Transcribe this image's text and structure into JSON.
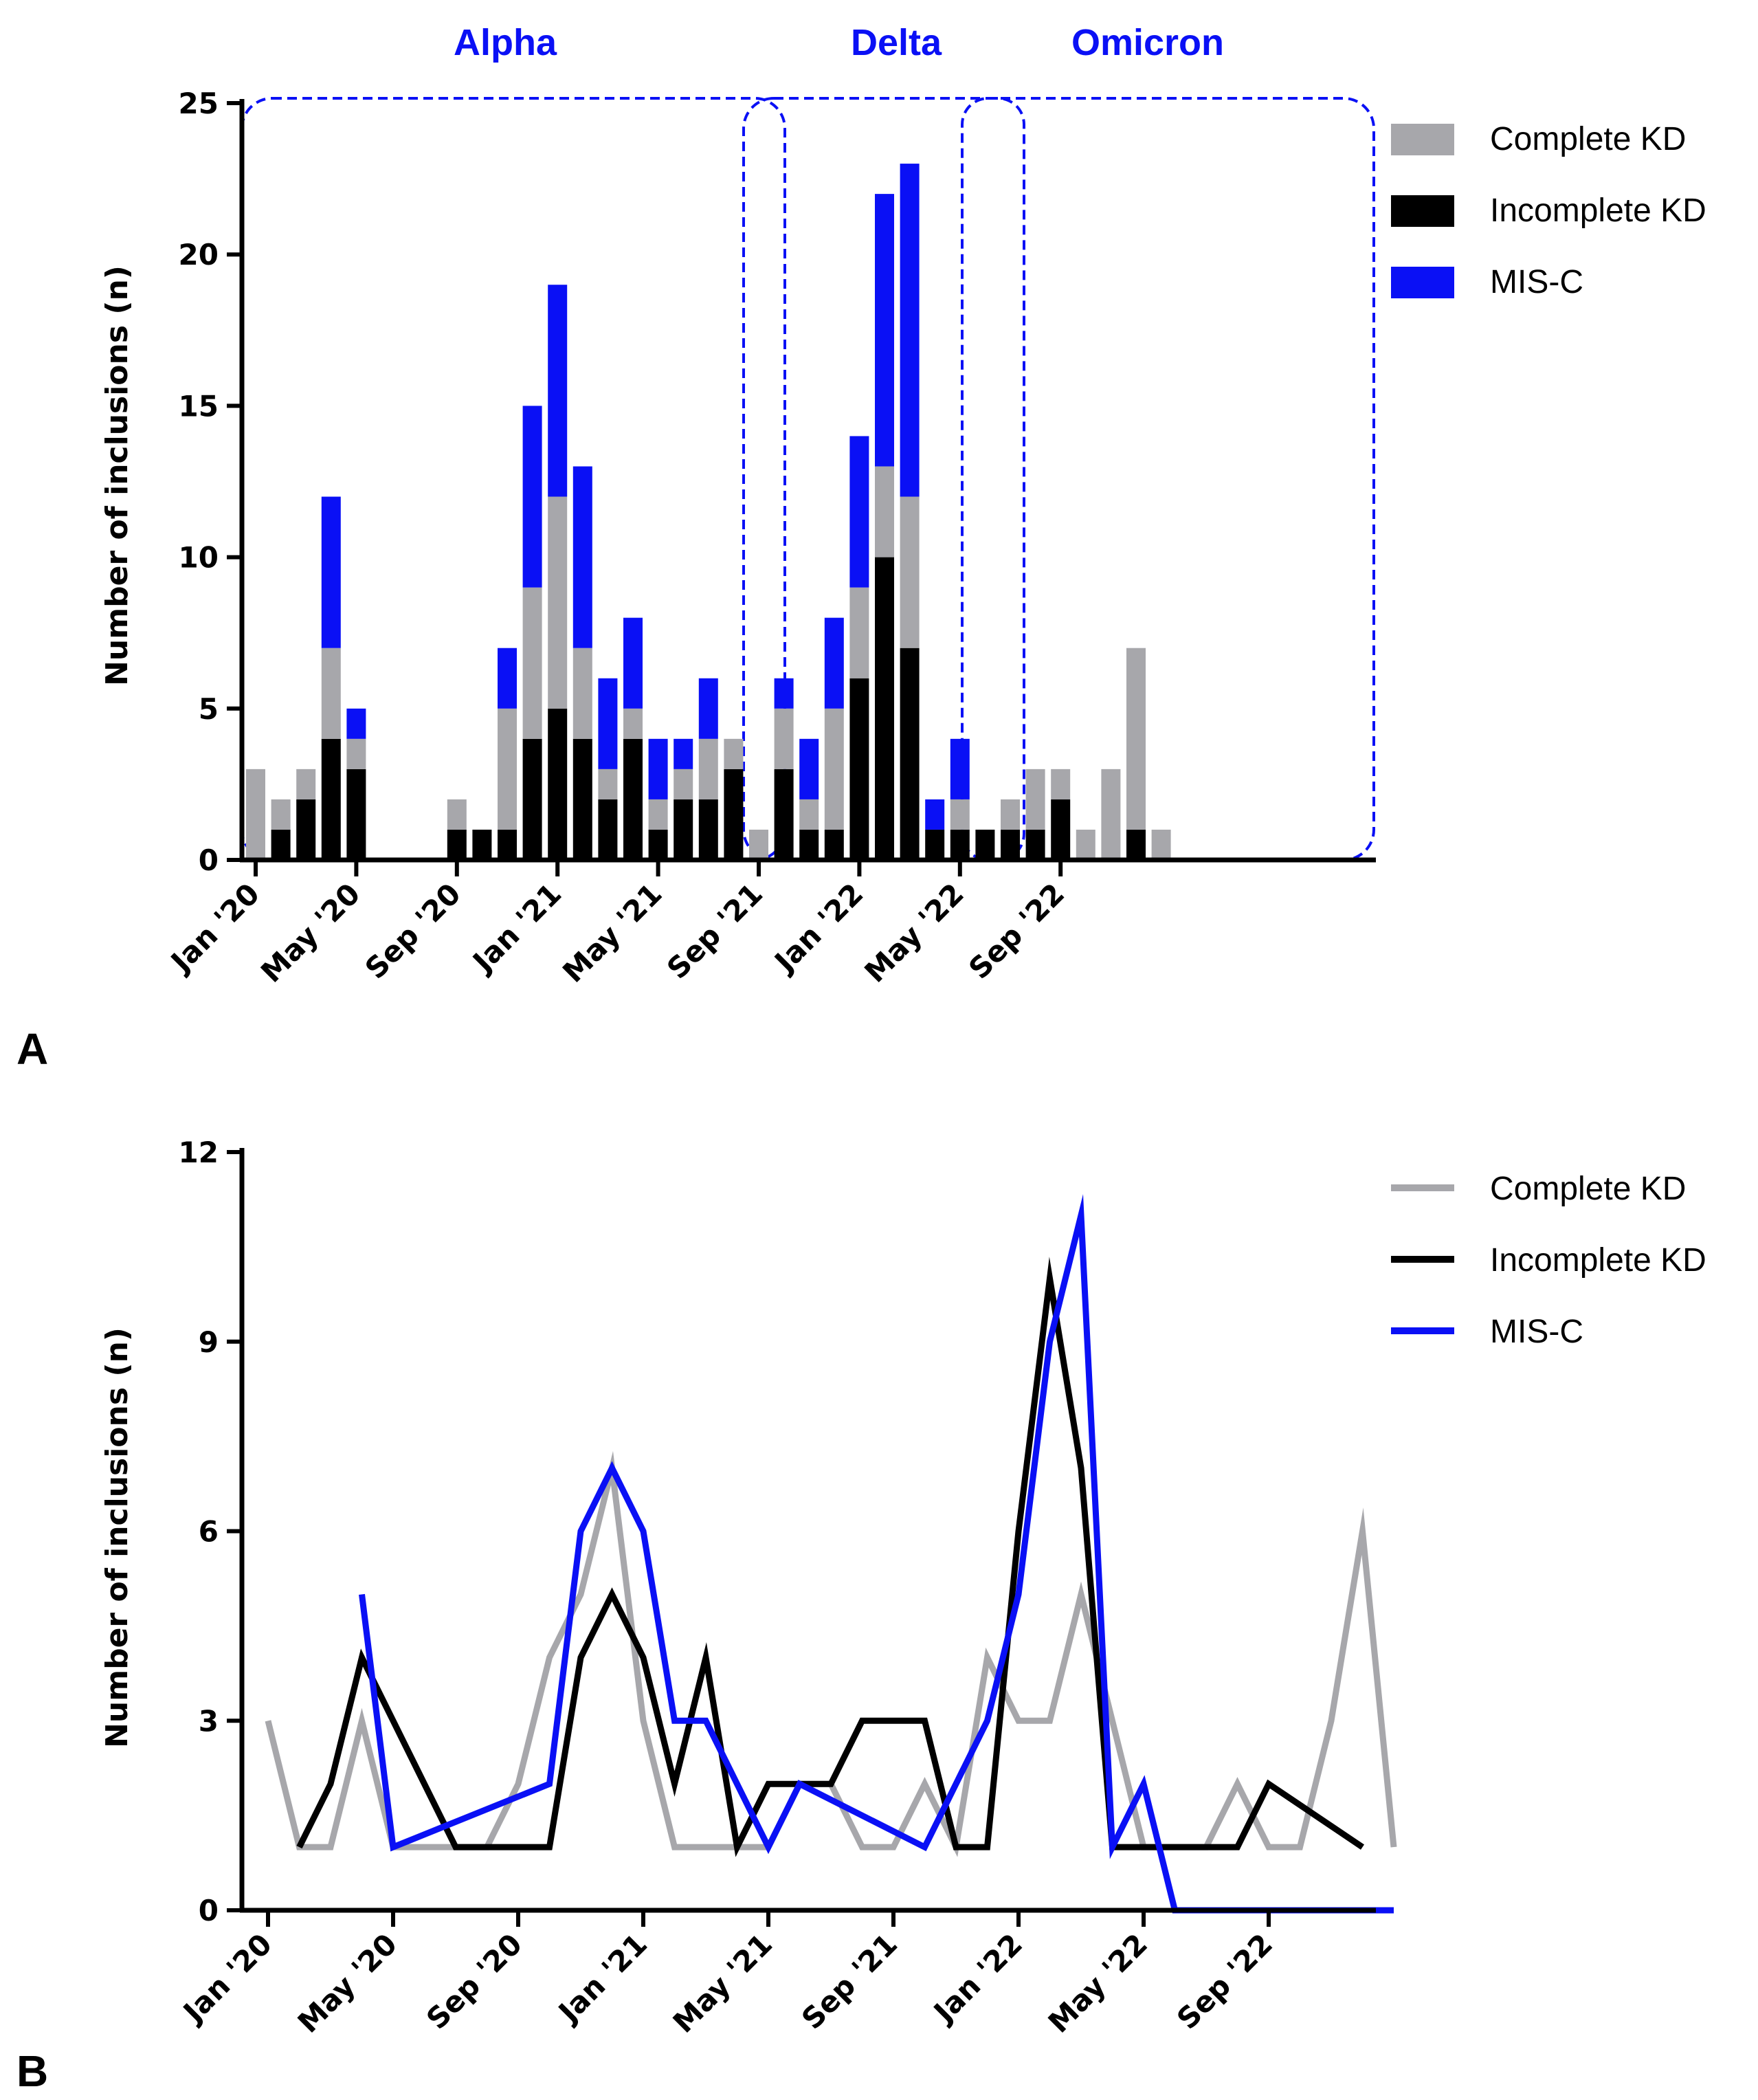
{
  "colors": {
    "complete": "#a7a7ab",
    "incomplete": "#000000",
    "misc": "#0a10f5"
  },
  "panels": {
    "a": "A",
    "b": "B"
  },
  "chart_data": [
    {
      "type": "bar",
      "stacked": true,
      "ylabel": "Number of inclusions (n)",
      "ylim": [
        0,
        25
      ],
      "yticks": [
        "0",
        "5",
        "10",
        "15",
        "20",
        "25"
      ],
      "xtick_labels": [
        "Jan '20",
        "May '20",
        "Sep '20",
        "Jan '21",
        "May '21",
        "Sep '21",
        "Jan '22",
        "May '22",
        "Sep '22"
      ],
      "categories": [
        "Jan 2020",
        "Feb 2020",
        "Mar 2020",
        "Apr 2020",
        "May 2020",
        "Jun 2020",
        "Jul 2020",
        "Aug 2020",
        "Sep 2020",
        "Oct 2020",
        "Nov 2020",
        "Dec 2020",
        "Jan 2021",
        "Feb 2021",
        "Mar 2021",
        "Apr 2021",
        "May 2021",
        "Jun 2021",
        "Jul 2021",
        "Aug 2021",
        "Sep 2021",
        "Oct 2021",
        "Nov 2021",
        "Dec 2021",
        "Jan 2022",
        "Feb 2022",
        "Mar 2022",
        "Apr 2022",
        "May 2022",
        "Jun 2022",
        "Jul 2022",
        "Aug 2022",
        "Sep 2022",
        "Oct 2022",
        "Nov 2022",
        "Dec 2022"
      ],
      "series": [
        {
          "name": "Incomplete KD",
          "values": [
            0,
            1,
            2,
            4,
            3,
            0,
            0,
            0,
            1,
            1,
            1,
            4,
            5,
            4,
            2,
            4,
            1,
            2,
            2,
            3,
            0,
            3,
            1,
            1,
            6,
            10,
            7,
            1,
            1,
            1,
            1,
            1,
            2,
            0,
            0,
            1
          ]
        },
        {
          "name": "Complete KD",
          "values": [
            3,
            1,
            1,
            3,
            1,
            0,
            0,
            0,
            1,
            0,
            4,
            5,
            7,
            3,
            1,
            1,
            1,
            1,
            2,
            1,
            1,
            2,
            1,
            4,
            3,
            3,
            5,
            0,
            1,
            0,
            1,
            2,
            1,
            1,
            3,
            6
          ]
        },
        {
          "name": "MIS-C",
          "values": [
            0,
            0,
            0,
            5,
            1,
            0,
            0,
            0,
            0,
            0,
            2,
            6,
            7,
            6,
            3,
            3,
            2,
            1,
            2,
            0,
            0,
            1,
            2,
            3,
            5,
            9,
            11,
            1,
            2,
            0,
            0,
            0,
            0,
            0,
            0,
            0
          ]
        }
      ],
      "extra_bar": {
        "category": "Jan 2023",
        "name": "Complete KD",
        "value": 1
      },
      "legend": [
        "Complete KD",
        "Incomplete KD",
        "MIS-C"
      ],
      "annotations": [
        "Alpha",
        "Delta",
        "Omicron"
      ]
    },
    {
      "type": "line",
      "ylabel": "Number of inclusions (n)",
      "ylim": [
        0,
        12
      ],
      "yticks": [
        "0",
        "3",
        "6",
        "9",
        "12"
      ],
      "xtick_labels": [
        "Jan '20",
        "May '20",
        "Sep '20",
        "Jan '21",
        "May '21",
        "Sep '21",
        "Jan '22",
        "May '22",
        "Sep '22"
      ],
      "series": [
        {
          "name": "Complete KD",
          "points": [
            [
              0,
              3
            ],
            [
              1,
              1
            ],
            [
              2,
              1
            ],
            [
              3,
              3
            ],
            [
              4,
              1
            ],
            [
              5,
              1
            ],
            [
              6,
              1
            ],
            [
              7,
              1
            ],
            [
              8,
              2
            ],
            [
              9,
              4
            ],
            [
              10,
              5
            ],
            [
              11,
              7
            ],
            [
              12,
              3
            ],
            [
              13,
              1
            ],
            [
              14,
              1
            ],
            [
              15,
              1
            ],
            [
              16,
              1
            ],
            [
              17,
              2
            ],
            [
              18,
              2
            ],
            [
              19,
              1
            ],
            [
              20,
              1
            ],
            [
              21,
              2
            ],
            [
              22,
              1
            ],
            [
              23,
              4
            ],
            [
              24,
              3
            ],
            [
              25,
              3
            ],
            [
              26,
              5
            ],
            [
              27,
              3
            ],
            [
              28,
              1
            ],
            [
              29,
              1
            ],
            [
              30,
              1
            ],
            [
              31,
              2
            ],
            [
              32,
              1
            ],
            [
              33,
              1
            ],
            [
              34,
              3
            ],
            [
              35,
              6
            ],
            [
              36,
              1
            ]
          ]
        },
        {
          "name": "Incomplete KD",
          "points": [
            [
              1,
              1
            ],
            [
              2,
              2
            ],
            [
              3,
              4
            ],
            [
              4,
              3
            ],
            [
              6,
              1
            ],
            [
              7,
              1
            ],
            [
              8,
              1
            ],
            [
              9,
              1
            ],
            [
              10,
              4
            ],
            [
              11,
              5
            ],
            [
              12,
              4
            ],
            [
              13,
              2
            ],
            [
              14,
              4
            ],
            [
              15,
              1
            ],
            [
              16,
              2
            ],
            [
              17,
              2
            ],
            [
              18,
              2
            ],
            [
              19,
              3
            ],
            [
              20,
              3
            ],
            [
              21,
              3
            ],
            [
              22,
              1
            ],
            [
              23,
              1
            ],
            [
              24,
              6
            ],
            [
              25,
              10
            ],
            [
              26,
              7
            ],
            [
              27,
              1
            ],
            [
              28,
              1
            ],
            [
              29,
              1
            ],
            [
              30,
              1
            ],
            [
              31,
              1
            ],
            [
              32,
              2
            ],
            [
              35,
              1
            ]
          ]
        },
        {
          "name": "MIS-C",
          "points": [
            [
              3,
              5
            ],
            [
              4,
              1
            ],
            [
              9,
              2
            ],
            [
              10,
              6
            ],
            [
              11,
              7
            ],
            [
              12,
              6
            ],
            [
              13,
              3
            ],
            [
              14,
              3
            ],
            [
              16,
              1
            ],
            [
              17,
              2
            ],
            [
              21,
              1
            ],
            [
              23,
              3
            ],
            [
              24,
              5
            ],
            [
              25,
              9
            ],
            [
              26,
              11
            ],
            [
              27,
              1
            ],
            [
              28,
              2
            ],
            [
              29,
              0
            ],
            [
              30,
              0
            ],
            [
              31,
              0
            ],
            [
              32,
              0
            ],
            [
              33,
              0
            ],
            [
              34,
              0
            ],
            [
              35,
              0
            ],
            [
              36,
              0
            ]
          ]
        }
      ],
      "legend": [
        "Complete KD",
        "Incomplete KD",
        "MIS-C"
      ]
    }
  ]
}
